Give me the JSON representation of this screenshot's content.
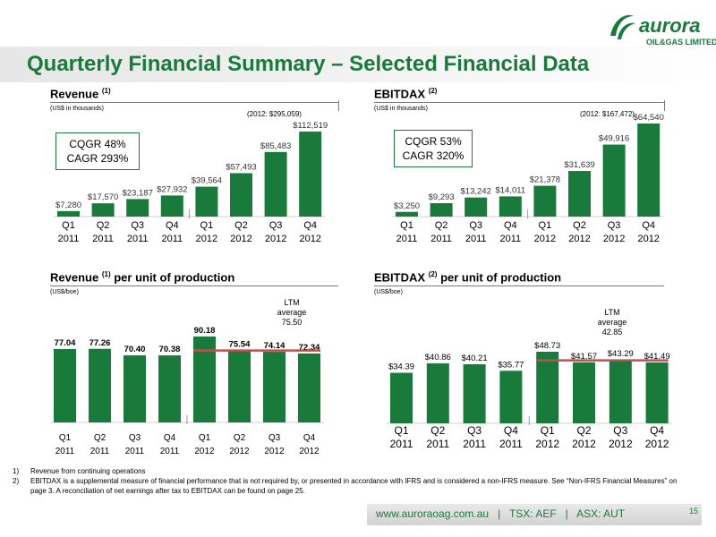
{
  "page": {
    "title": "Quarterly Financial Summary – Selected Financial Data",
    "page_number": "15",
    "footer": "www.auroraoag.com.au   |   TSX: AEF   |   ASX: AUT"
  },
  "logo": {
    "wordmark": "aurora",
    "subtitle": "OIL&GAS LIMITED"
  },
  "colors": {
    "bar": "#1a7a3c",
    "title": "#1a7a3c",
    "ltm_line": "#c0504d"
  },
  "panels": {
    "revenue": {
      "title": "Revenue",
      "sup": "(1)",
      "unit": "(US$ in thousands)",
      "annotation": "(2012: $295,059)",
      "box": "CQGR 48%\nCAGR 293%"
    },
    "ebitdax": {
      "title": "EBITDAX",
      "sup": "(2)",
      "unit": "(US$ in thousands)",
      "annotation": "(2012: $167,472)",
      "box": "CQGR 53%\nCAGR 320%"
    },
    "revenue_unit": {
      "title_pre": "Revenue",
      "sup": "(1)",
      "title_post": " per unit of production",
      "unit": "(US$/boe)",
      "ltm": "LTM\naverage\n75.50"
    },
    "ebitdax_unit": {
      "title_pre": "EBITDAX",
      "sup": "(2)",
      "title_post": " per unit of production",
      "unit": "(US$/boe)",
      "ltm": "LTM\naverage\n42.85"
    }
  },
  "chart_data": [
    {
      "type": "bar",
      "title": "Revenue (1)",
      "ylabel": "(US$ in thousands)",
      "categories": [
        "Q1 2011",
        "Q2 2011",
        "Q3 2011",
        "Q4 2011",
        "Q1 2012",
        "Q2 2012",
        "Q3 2012",
        "Q4 2012"
      ],
      "values": [
        7280,
        17570,
        23187,
        27932,
        39564,
        57493,
        85483,
        112519
      ],
      "labels": [
        "$7,280",
        "$17,570",
        "$23,187",
        "$27,932",
        "$39,564",
        "$57,493",
        "$85,483",
        "$112,519"
      ],
      "ylim": [
        0,
        112519
      ]
    },
    {
      "type": "bar",
      "title": "EBITDAX (2)",
      "ylabel": "(US$ in thousands)",
      "categories": [
        "Q1 2011",
        "Q2 2011",
        "Q3 2011",
        "Q4 2011",
        "Q1 2012",
        "Q2 2012",
        "Q3 2012",
        "Q4 2012"
      ],
      "values": [
        3250,
        9293,
        13242,
        14011,
        21378,
        31639,
        49916,
        64540
      ],
      "labels": [
        "$3,250",
        "$9,293",
        "$13,242",
        "$14,011",
        "$21,378",
        "$31,639",
        "$49,916",
        "$64,540"
      ],
      "ylim": [
        0,
        64540
      ]
    },
    {
      "type": "bar",
      "title": "Revenue (1) per unit of production",
      "ylabel": "(US$/boe)",
      "categories": [
        "Q1 2011",
        "Q2 2011",
        "Q3 2011",
        "Q4 2011",
        "Q1 2012",
        "Q2 2012",
        "Q3 2012",
        "Q4 2012"
      ],
      "values": [
        77.04,
        77.26,
        70.4,
        70.38,
        90.18,
        75.54,
        74.14,
        72.34
      ],
      "labels": [
        "77.04",
        "77.26",
        "70.40",
        "70.38",
        "90.18",
        "75.54",
        "74.14",
        "72.34"
      ],
      "ylim": [
        0,
        90.18
      ],
      "ltm_average": 75.5
    },
    {
      "type": "bar",
      "title": "EBITDAX (2) per unit of production",
      "ylabel": "(US$/boe)",
      "categories": [
        "Q1 2011",
        "Q2 2011",
        "Q3 2011",
        "Q4 2011",
        "Q1 2012",
        "Q2 2012",
        "Q3 2012",
        "Q4 2012"
      ],
      "values": [
        34.39,
        40.86,
        40.21,
        35.77,
        48.73,
        41.57,
        43.29,
        41.49
      ],
      "labels": [
        "$34.39",
        "$40.86",
        "$40.21",
        "$35.77",
        "$48.73",
        "$41.57",
        "$43.29",
        "$41.49"
      ],
      "ylim": [
        0,
        48.73
      ],
      "ltm_average": 42.85
    }
  ],
  "footnotes": [
    {
      "num": "1)",
      "text": "Revenue from continuing operations"
    },
    {
      "num": "2)",
      "text": "EBITDAX is a supplemental measure of financial performance that is not required by, or presented in accordance with IFRS and is considered a non-IFRS measure. See “Non-IFRS Financial Measures” on page 3. A reconciliation of net earnings after tax to EBITDAX can be found on page 25."
    }
  ]
}
